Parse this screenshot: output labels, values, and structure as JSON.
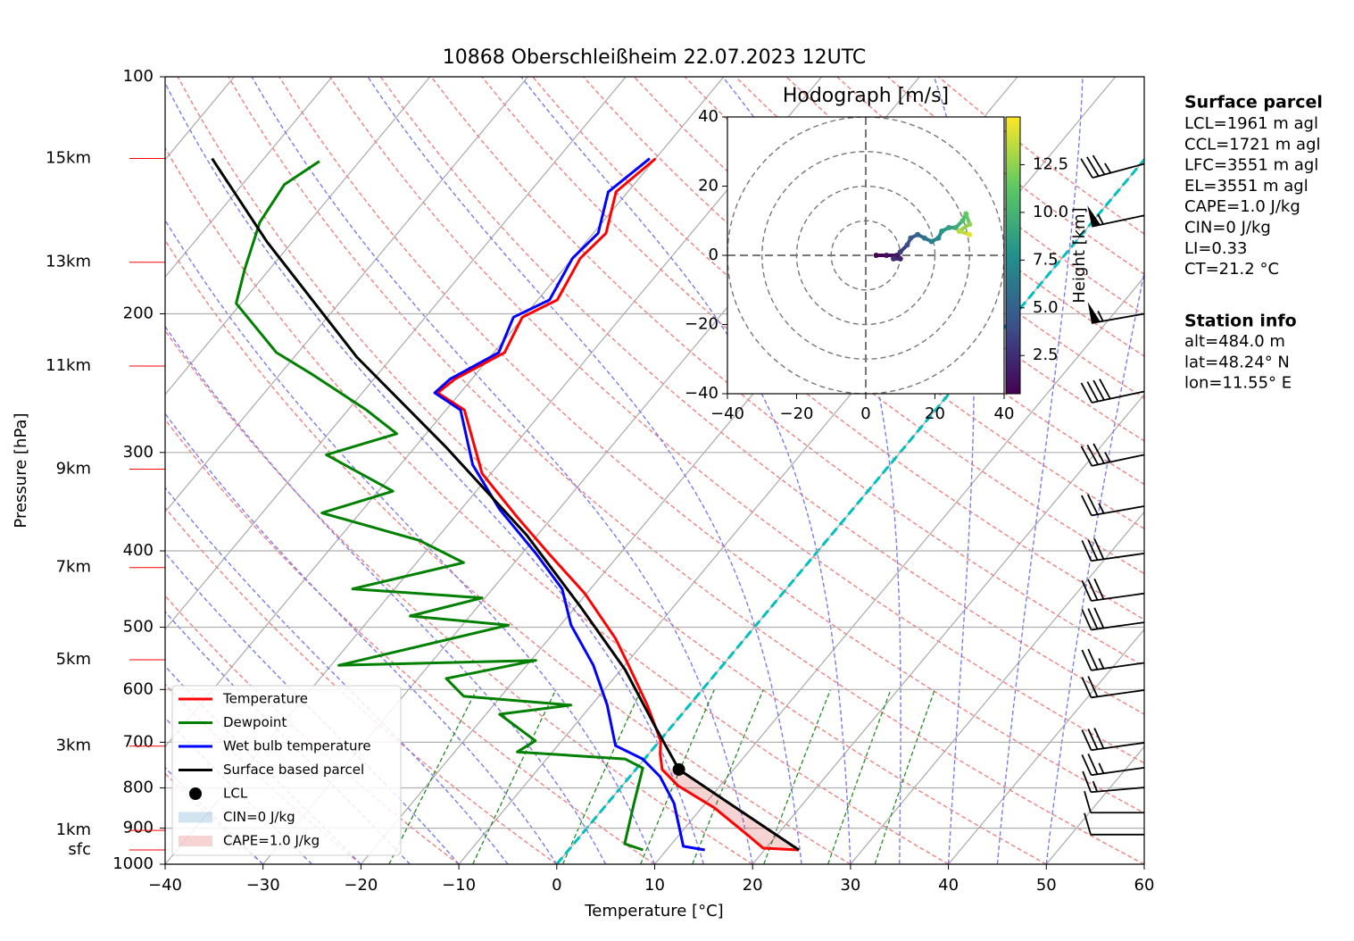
{
  "chart_data": {
    "type": "skewt",
    "title": "10868 Oberschleißheim 22.07.2023 12UTC",
    "xlabel": "Temperature [°C]",
    "ylabel": "Pressure [hPa]",
    "xlim": [
      -40,
      60
    ],
    "ylim": [
      1000,
      100
    ],
    "log_y": true,
    "grid": true,
    "xticks": [
      {
        "value": -40,
        "label": "−40"
      },
      {
        "value": -30,
        "label": "−30"
      },
      {
        "value": -20,
        "label": "−20"
      },
      {
        "value": -10,
        "label": "−10"
      },
      0,
      10,
      20,
      30,
      40,
      50,
      60
    ],
    "yticks": [
      100,
      200,
      300,
      400,
      500,
      600,
      700,
      800,
      900,
      1000
    ],
    "series": [
      {
        "name": "Temperature",
        "color": "#ff0000",
        "pressure": [
          959,
          954,
          922,
          848,
          795,
          758,
          725,
          697,
          628,
          559,
          517,
          453,
          403,
          363,
          319,
          265,
          252,
          242,
          224,
          202,
          192,
          170,
          158,
          140,
          127
        ],
        "values": [
          23.5,
          19.7,
          17.3,
          11.3,
          5.7,
          2.7,
          1.2,
          0.1,
          -4.3,
          -9.6,
          -13.2,
          -20.2,
          -27.3,
          -33.5,
          -40.9,
          -48.1,
          -52.3,
          -51.7,
          -48.9,
          -50.1,
          -48.0,
          -49.2,
          -48.7,
          -51.2,
          -50.0
        ]
      },
      {
        "name": "Dewpoint",
        "color": "#008000",
        "pressure": [
          959,
          942,
          837,
          755,
          735,
          720,
          697,
          645,
          628,
          612,
          581,
          551,
          559,
          497,
          484,
          459,
          447,
          414,
          388,
          358,
          336,
          302,
          284,
          265,
          239,
          224,
          194,
          175,
          153,
          137,
          128
        ],
        "values": [
          7.6,
          5.2,
          2.7,
          0.6,
          -2.0,
          -13.6,
          -12.7,
          -18.6,
          -12.1,
          -23.8,
          -27.1,
          -19.5,
          -39.2,
          -25.3,
          -36.1,
          -30.3,
          -44.3,
          -35.2,
          -41.6,
          -53.9,
          -48.5,
          -58.4,
          -53.0,
          -58.1,
          -66.6,
          -72.2,
          -80.5,
          -82.6,
          -85.0,
          -85.7,
          -84.1
        ]
      },
      {
        "name": "Wet bulb temperature",
        "color": "#0000ff",
        "pressure": [
          959,
          949,
          837,
          774,
          735,
          707,
          628,
          559,
          497,
          447,
          403,
          354,
          311,
          265,
          252,
          242,
          224,
          202,
          192,
          170,
          158,
          140,
          127
        ],
        "values": [
          13.9,
          11.4,
          6.8,
          3.1,
          -0.2,
          -4.1,
          -8.4,
          -13.2,
          -18.9,
          -22.9,
          -28.6,
          -36.1,
          -42.6,
          -48.5,
          -52.6,
          -52.2,
          -49.5,
          -51.0,
          -48.8,
          -50.0,
          -49.5,
          -52.0,
          -50.6
        ]
      },
      {
        "name": "Surface based parcel",
        "color": "#000000",
        "pressure": [
          959,
          758,
          671,
          566,
          471,
          382,
          295,
          227,
          162,
          127
        ],
        "values": [
          23.5,
          4.4,
          -1.5,
          -9.6,
          -19.5,
          -31.1,
          -46.9,
          -63.6,
          -82.6,
          -95.3
        ]
      }
    ],
    "lcl": {
      "name": "LCL",
      "pressure": 758,
      "temperature": 4.4,
      "color": "#000000"
    },
    "cin_label": "CIN=0 J/kg",
    "cape_label": "CAPE=1.0 J/kg",
    "height_labels": {
      "labels": [
        "15km",
        "13km",
        "11km",
        "9km",
        "7km",
        "5km",
        "3km",
        "1km",
        "sfc"
      ],
      "pressure": [
        127,
        172,
        233,
        315,
        420,
        550,
        708,
        906,
        959
      ]
    },
    "wind_barbs": {
      "pressure": [
        129,
        150,
        200,
        251,
        302,
        351,
        403,
        453,
        493,
        555,
        601,
        701,
        754,
        799,
        860,
        917
      ],
      "speed": [
        35,
        55,
        55,
        40,
        35,
        25,
        30,
        30,
        30,
        25,
        20,
        30,
        25,
        15,
        10,
        10
      ],
      "direction": [
        255,
        258,
        260,
        258,
        258,
        260,
        262,
        262,
        262,
        262,
        262,
        262,
        262,
        265,
        270,
        270
      ]
    },
    "hodograph": {
      "title": "Hodograph [m/s]",
      "xlim": [
        -40,
        40
      ],
      "ylim": [
        -40,
        40
      ],
      "xticks": [
        {
          "value": -40,
          "label": "−40"
        },
        {
          "value": -20,
          "label": "−20"
        },
        0,
        20,
        40
      ],
      "yticks": [
        {
          "value": -40,
          "label": "−40"
        },
        {
          "value": -20,
          "label": "−20"
        },
        0,
        20,
        40
      ],
      "rings": [
        10,
        20,
        30,
        40
      ],
      "u": [
        3,
        6,
        9,
        10,
        8,
        10,
        12,
        13,
        15,
        17,
        19,
        21,
        22,
        24,
        26,
        28,
        29,
        30,
        27,
        30
      ],
      "v": [
        0,
        0,
        0,
        -1,
        -1,
        1,
        3,
        5,
        6,
        5,
        4,
        5,
        7,
        8,
        8,
        10,
        12,
        9,
        7,
        6
      ],
      "height": [
        0.5,
        1.0,
        1.5,
        2.0,
        2.5,
        3.2,
        3.9,
        4.6,
        5.3,
        6.0,
        6.7,
        7.4,
        8.1,
        8.8,
        9.5,
        10.5,
        11.5,
        12.5,
        13.5,
        14.5
      ],
      "colormap": "viridis",
      "clim": [
        0.5,
        15.0
      ],
      "cticks": [
        2.5,
        {
          "value": 5,
          "label": "5.0"
        },
        7.5,
        {
          "value": 10,
          "label": "10.0"
        },
        12.5
      ],
      "clabel": "Height [km]"
    },
    "info": {
      "surface_title": "Surface parcel",
      "surface_lines": [
        "LCL=1961 m agl",
        "CCL=1721 m agl",
        "LFC=3551 m agl",
        "EL=3551 m agl",
        "CAPE=1.0 J/kg",
        "CIN=0 J/kg",
        "LI=0.33",
        "CT=21.2 °C"
      ],
      "station_title": "Station info",
      "station_lines": [
        "alt=484.0 m",
        "lat=48.24° N",
        "lon=11.55° E"
      ]
    }
  }
}
